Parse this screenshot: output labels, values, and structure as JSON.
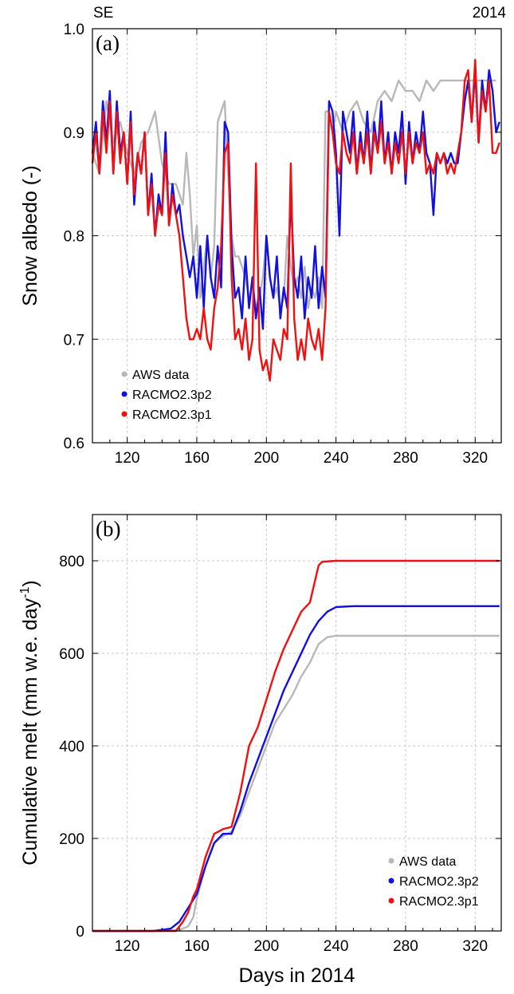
{
  "header": {
    "left": "SE",
    "right": "2014"
  },
  "colors": {
    "aws": "#b8b8b8",
    "p2": "#1010e0",
    "p1": "#f01010",
    "grid": "#c8c8c8"
  },
  "chart_data": [
    {
      "type": "line",
      "panel_label": "(a)",
      "ylabel": "Snow albedo (-)",
      "xlabel": "",
      "xlim": [
        100,
        335
      ],
      "ylim": [
        0.6,
        1.0
      ],
      "xticks": [
        120,
        160,
        200,
        240,
        280,
        320
      ],
      "yticks": [
        0.6,
        0.7,
        0.8,
        0.9,
        1.0
      ],
      "ytick_labels": [
        "0.6",
        "0.7",
        "0.8",
        "0.9",
        "1.0"
      ],
      "grid": true,
      "legend": "bottom-left",
      "series": [
        {
          "name": "AWS data",
          "color": "#b8b8b8",
          "x": [
            100,
            104,
            108,
            112,
            116,
            120,
            124,
            128,
            132,
            136,
            140,
            144,
            148,
            152,
            154,
            156,
            158,
            160,
            162,
            164,
            166,
            168,
            170,
            172,
            174,
            176,
            178,
            180,
            182,
            184,
            186,
            188,
            190,
            192,
            194,
            196,
            198,
            200,
            202,
            204,
            206,
            208,
            210,
            212,
            214,
            216,
            218,
            220,
            222,
            224,
            226,
            228,
            230,
            232,
            234,
            236,
            238,
            240,
            244,
            248,
            252,
            256,
            260,
            264,
            268,
            272,
            276,
            280,
            284,
            288,
            292,
            296,
            300,
            304,
            308,
            312,
            316,
            320,
            324,
            328,
            332
          ],
          "y": [
            0.88,
            0.86,
            0.93,
            0.89,
            0.91,
            0.88,
            0.86,
            0.89,
            0.9,
            0.92,
            0.87,
            0.85,
            0.85,
            0.83,
            0.88,
            0.84,
            0.78,
            0.81,
            0.74,
            0.77,
            0.8,
            0.76,
            0.79,
            0.91,
            0.92,
            0.93,
            0.86,
            0.8,
            0.78,
            0.78,
            0.77,
            0.76,
            0.74,
            0.75,
            0.73,
            0.74,
            0.76,
            0.8,
            0.76,
            0.74,
            0.75,
            0.73,
            0.74,
            0.8,
            0.77,
            0.75,
            0.76,
            0.74,
            0.77,
            0.73,
            0.75,
            0.74,
            0.76,
            0.73,
            0.92,
            0.92,
            0.9,
            0.92,
            0.9,
            0.92,
            0.93,
            0.91,
            0.9,
            0.93,
            0.94,
            0.93,
            0.95,
            0.94,
            0.94,
            0.93,
            0.95,
            0.94,
            0.95,
            0.95,
            0.95,
            0.95,
            0.95,
            0.95,
            0.95,
            0.95,
            0.95
          ]
        },
        {
          "name": "RACMO2.3p2",
          "color": "#1010e0",
          "x": [
            100,
            102,
            104,
            106,
            108,
            110,
            112,
            114,
            116,
            118,
            120,
            122,
            124,
            126,
            128,
            130,
            132,
            134,
            136,
            138,
            140,
            142,
            144,
            146,
            148,
            150,
            152,
            154,
            156,
            158,
            160,
            162,
            164,
            166,
            168,
            170,
            172,
            174,
            176,
            178,
            180,
            182,
            184,
            186,
            188,
            190,
            192,
            194,
            196,
            198,
            200,
            202,
            204,
            206,
            208,
            210,
            212,
            214,
            216,
            218,
            220,
            222,
            224,
            226,
            228,
            230,
            232,
            234,
            236,
            238,
            240,
            242,
            244,
            246,
            248,
            250,
            252,
            254,
            256,
            258,
            260,
            262,
            264,
            266,
            268,
            270,
            272,
            274,
            276,
            278,
            280,
            282,
            284,
            286,
            288,
            290,
            292,
            294,
            296,
            298,
            300,
            302,
            304,
            306,
            308,
            310,
            312,
            314,
            316,
            318,
            320,
            322,
            324,
            326,
            328,
            330,
            332,
            334
          ],
          "y": [
            0.88,
            0.91,
            0.86,
            0.93,
            0.89,
            0.94,
            0.86,
            0.93,
            0.88,
            0.9,
            0.85,
            0.92,
            0.83,
            0.88,
            0.86,
            0.9,
            0.82,
            0.86,
            0.8,
            0.84,
            0.82,
            0.9,
            0.81,
            0.85,
            0.82,
            0.83,
            0.8,
            0.78,
            0.76,
            0.78,
            0.74,
            0.79,
            0.73,
            0.8,
            0.76,
            0.74,
            0.79,
            0.75,
            0.91,
            0.9,
            0.79,
            0.74,
            0.75,
            0.72,
            0.78,
            0.73,
            0.76,
            0.72,
            0.75,
            0.71,
            0.8,
            0.76,
            0.74,
            0.78,
            0.72,
            0.75,
            0.73,
            0.84,
            0.76,
            0.74,
            0.78,
            0.72,
            0.76,
            0.74,
            0.79,
            0.73,
            0.77,
            0.74,
            0.93,
            0.92,
            0.88,
            0.8,
            0.92,
            0.9,
            0.88,
            0.92,
            0.86,
            0.9,
            0.87,
            0.92,
            0.86,
            0.91,
            0.88,
            0.93,
            0.87,
            0.9,
            0.86,
            0.9,
            0.88,
            0.92,
            0.85,
            0.91,
            0.87,
            0.9,
            0.88,
            0.92,
            0.88,
            0.87,
            0.82,
            0.88,
            0.87,
            0.88,
            0.87,
            0.88,
            0.87,
            0.87,
            0.9,
            0.93,
            0.95,
            0.91,
            0.96,
            0.89,
            0.95,
            0.92,
            0.96,
            0.94,
            0.9,
            0.91
          ]
        },
        {
          "name": "RACMO2.3p1",
          "color": "#f01010",
          "x": [
            100,
            102,
            104,
            106,
            108,
            110,
            112,
            114,
            116,
            118,
            120,
            122,
            124,
            126,
            128,
            130,
            132,
            134,
            136,
            138,
            140,
            142,
            144,
            146,
            148,
            150,
            152,
            154,
            156,
            158,
            160,
            162,
            164,
            166,
            168,
            170,
            172,
            174,
            176,
            178,
            180,
            182,
            184,
            186,
            188,
            190,
            192,
            194,
            196,
            198,
            200,
            202,
            204,
            206,
            208,
            210,
            212,
            214,
            216,
            218,
            220,
            222,
            224,
            226,
            228,
            230,
            232,
            234,
            236,
            238,
            240,
            242,
            244,
            246,
            248,
            250,
            252,
            254,
            256,
            258,
            260,
            262,
            264,
            266,
            268,
            270,
            272,
            274,
            276,
            278,
            280,
            282,
            284,
            286,
            288,
            290,
            292,
            294,
            296,
            298,
            300,
            302,
            304,
            306,
            308,
            310,
            312,
            314,
            316,
            318,
            320,
            322,
            324,
            326,
            328,
            330,
            332,
            334
          ],
          "y": [
            0.87,
            0.9,
            0.86,
            0.92,
            0.88,
            0.93,
            0.86,
            0.92,
            0.87,
            0.9,
            0.85,
            0.91,
            0.84,
            0.88,
            0.86,
            0.9,
            0.82,
            0.85,
            0.8,
            0.83,
            0.82,
            0.88,
            0.81,
            0.84,
            0.82,
            0.8,
            0.76,
            0.72,
            0.7,
            0.7,
            0.71,
            0.7,
            0.73,
            0.7,
            0.69,
            0.73,
            0.75,
            0.79,
            0.88,
            0.89,
            0.76,
            0.7,
            0.71,
            0.69,
            0.72,
            0.68,
            0.7,
            0.87,
            0.69,
            0.67,
            0.68,
            0.66,
            0.7,
            0.69,
            0.68,
            0.71,
            0.7,
            0.87,
            0.72,
            0.68,
            0.7,
            0.68,
            0.72,
            0.7,
            0.69,
            0.71,
            0.68,
            0.73,
            0.92,
            0.9,
            0.87,
            0.86,
            0.9,
            0.88,
            0.87,
            0.9,
            0.86,
            0.89,
            0.87,
            0.9,
            0.86,
            0.9,
            0.88,
            0.91,
            0.87,
            0.89,
            0.86,
            0.89,
            0.87,
            0.9,
            0.86,
            0.9,
            0.87,
            0.89,
            0.88,
            0.9,
            0.86,
            0.87,
            0.86,
            0.88,
            0.87,
            0.88,
            0.86,
            0.87,
            0.86,
            0.88,
            0.9,
            0.95,
            0.96,
            0.91,
            0.97,
            0.89,
            0.94,
            0.92,
            0.95,
            0.88,
            0.88,
            0.89
          ]
        }
      ]
    },
    {
      "type": "line",
      "panel_label": "(b)",
      "ylabel": "Cumulative melt (mm w.e. day",
      "ylabel_sup": "-1",
      "ylabel_end": ")",
      "xlabel": "Days in 2014",
      "xlim": [
        100,
        335
      ],
      "ylim": [
        0,
        900
      ],
      "xticks": [
        120,
        160,
        200,
        240,
        280,
        320
      ],
      "yticks": [
        0,
        200,
        400,
        600,
        800
      ],
      "ytick_labels": [
        "0",
        "200",
        "400",
        "600",
        "800"
      ],
      "grid": true,
      "legend": "bottom-right",
      "series": [
        {
          "name": "AWS data",
          "color": "#b8b8b8",
          "x": [
            100,
            140,
            150,
            155,
            158,
            160,
            165,
            170,
            175,
            180,
            185,
            190,
            195,
            200,
            205,
            210,
            215,
            220,
            225,
            230,
            235,
            240,
            250,
            260,
            300,
            334
          ],
          "y": [
            0,
            0,
            2,
            10,
            30,
            70,
            140,
            190,
            205,
            215,
            250,
            300,
            350,
            400,
            450,
            480,
            510,
            550,
            580,
            620,
            635,
            638,
            638,
            638,
            638,
            638
          ]
        },
        {
          "name": "RACMO2.3p2",
          "color": "#1010e0",
          "x": [
            100,
            135,
            145,
            150,
            155,
            160,
            165,
            170,
            175,
            180,
            185,
            190,
            195,
            200,
            205,
            210,
            215,
            220,
            225,
            230,
            235,
            240,
            250,
            260,
            300,
            334
          ],
          "y": [
            0,
            0,
            5,
            20,
            50,
            80,
            140,
            190,
            210,
            210,
            260,
            320,
            370,
            420,
            470,
            520,
            560,
            600,
            640,
            670,
            690,
            700,
            702,
            702,
            702,
            702
          ]
        },
        {
          "name": "RACMO2.3p1",
          "color": "#f01010",
          "x": [
            100,
            140,
            148,
            152,
            155,
            158,
            160,
            165,
            170,
            175,
            180,
            185,
            190,
            195,
            200,
            205,
            210,
            215,
            220,
            225,
            230,
            232,
            240,
            260,
            300,
            334
          ],
          "y": [
            0,
            0,
            0,
            20,
            40,
            75,
            90,
            160,
            210,
            220,
            225,
            300,
            400,
            440,
            500,
            560,
            610,
            650,
            690,
            710,
            790,
            798,
            800,
            800,
            800,
            800
          ]
        }
      ]
    }
  ]
}
